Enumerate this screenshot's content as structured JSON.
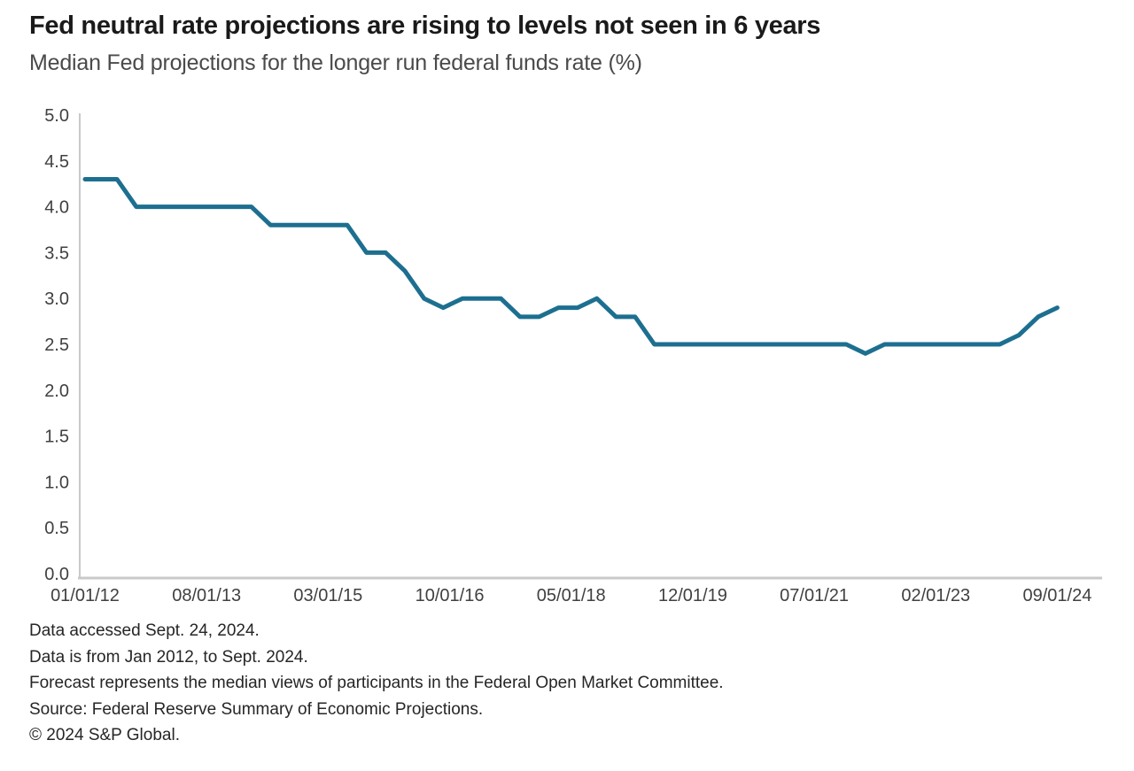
{
  "header": {
    "title": "Fed neutral rate projections are rising to levels not seen in 6 years",
    "subtitle": "Median Fed projections for the longer run federal funds rate (%)"
  },
  "chart_data": {
    "type": "line",
    "title": "Fed neutral rate projections are rising to levels not seen in 6 years",
    "subtitle": "Median Fed projections for the longer run federal funds rate (%)",
    "xlabel": "",
    "ylabel": "",
    "ylim": [
      0.0,
      5.0
    ],
    "y_tick_step": 0.5,
    "grid": false,
    "legend": false,
    "line_color": "#1d6f90",
    "axis_color": "#c9c9c9",
    "tick_label_color": "#404040",
    "y_ticks": [
      "5.0",
      "4.5",
      "4.0",
      "3.5",
      "3.0",
      "2.5",
      "2.0",
      "1.5",
      "1.0",
      "0.5",
      "0.0"
    ],
    "x_ticks": [
      {
        "label": "01/01/12",
        "date": "2012-01"
      },
      {
        "label": "08/01/13",
        "date": "2013-08"
      },
      {
        "label": "03/01/15",
        "date": "2015-03"
      },
      {
        "label": "10/01/16",
        "date": "2016-10"
      },
      {
        "label": "05/01/18",
        "date": "2018-05"
      },
      {
        "label": "12/01/19",
        "date": "2019-12"
      },
      {
        "label": "07/01/21",
        "date": "2021-07"
      },
      {
        "label": "02/01/23",
        "date": "2023-02"
      },
      {
        "label": "09/01/24",
        "date": "2024-09"
      }
    ],
    "x": [
      "2012-01",
      "2012-04",
      "2012-06",
      "2012-09",
      "2012-12",
      "2013-03",
      "2013-06",
      "2013-09",
      "2013-12",
      "2014-03",
      "2014-06",
      "2014-09",
      "2014-12",
      "2015-03",
      "2015-06",
      "2015-09",
      "2015-12",
      "2016-03",
      "2016-06",
      "2016-09",
      "2016-12",
      "2017-03",
      "2017-06",
      "2017-09",
      "2017-12",
      "2018-03",
      "2018-06",
      "2018-09",
      "2018-12",
      "2019-03",
      "2019-06",
      "2019-09",
      "2019-12",
      "2020-06",
      "2020-09",
      "2020-12",
      "2021-03",
      "2021-06",
      "2021-09",
      "2021-12",
      "2022-03",
      "2022-06",
      "2022-09",
      "2022-12",
      "2023-03",
      "2023-06",
      "2023-09",
      "2023-12",
      "2024-03",
      "2024-06",
      "2024-09"
    ],
    "values": [
      4.3,
      4.3,
      4.3,
      4.0,
      4.0,
      4.0,
      4.0,
      4.0,
      4.0,
      4.0,
      3.8,
      3.8,
      3.8,
      3.8,
      3.8,
      3.5,
      3.5,
      3.3,
      3.0,
      2.9,
      3.0,
      3.0,
      3.0,
      2.8,
      2.8,
      2.9,
      2.9,
      3.0,
      2.8,
      2.8,
      2.5,
      2.5,
      2.5,
      2.5,
      2.5,
      2.5,
      2.5,
      2.5,
      2.5,
      2.5,
      2.4,
      2.5,
      2.5,
      2.5,
      2.5,
      2.5,
      2.5,
      2.5,
      2.6,
      2.8,
      2.9
    ]
  },
  "footnotes": [
    "Data accessed Sept. 24, 2024.",
    "Data is from Jan 2012, to Sept. 2024.",
    "Forecast represents the median views of participants in the Federal Open Market Committee.",
    "Source: Federal Reserve Summary of Economic Projections.",
    "© 2024 S&P Global."
  ]
}
